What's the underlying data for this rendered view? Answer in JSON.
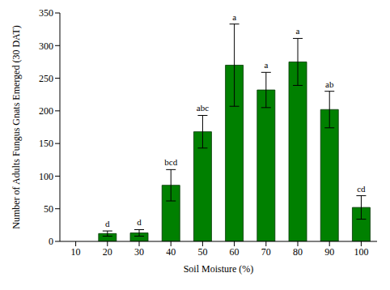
{
  "chart_data": {
    "type": "bar",
    "x_label": "Soil Moisture (%)",
    "y_label": "Number of Adults Fungus Gnats Emerged (30 DAT)",
    "categories": [
      "10",
      "20",
      "30",
      "40",
      "50",
      "60",
      "70",
      "80",
      "90",
      "100"
    ],
    "values": [
      0,
      12,
      13,
      86,
      168,
      270,
      232,
      275,
      202,
      52
    ],
    "errors": [
      0,
      4,
      5,
      24,
      25,
      63,
      27,
      36,
      28,
      18
    ],
    "annotations": [
      null,
      "d",
      "d",
      "bcd",
      "abc",
      "a",
      "a",
      "a",
      "ab",
      "cd"
    ],
    "color": "#008000",
    "ylim": [
      0,
      350
    ],
    "yticks": [
      0,
      50,
      100,
      150,
      200,
      250,
      300,
      350
    ],
    "grid": false
  }
}
